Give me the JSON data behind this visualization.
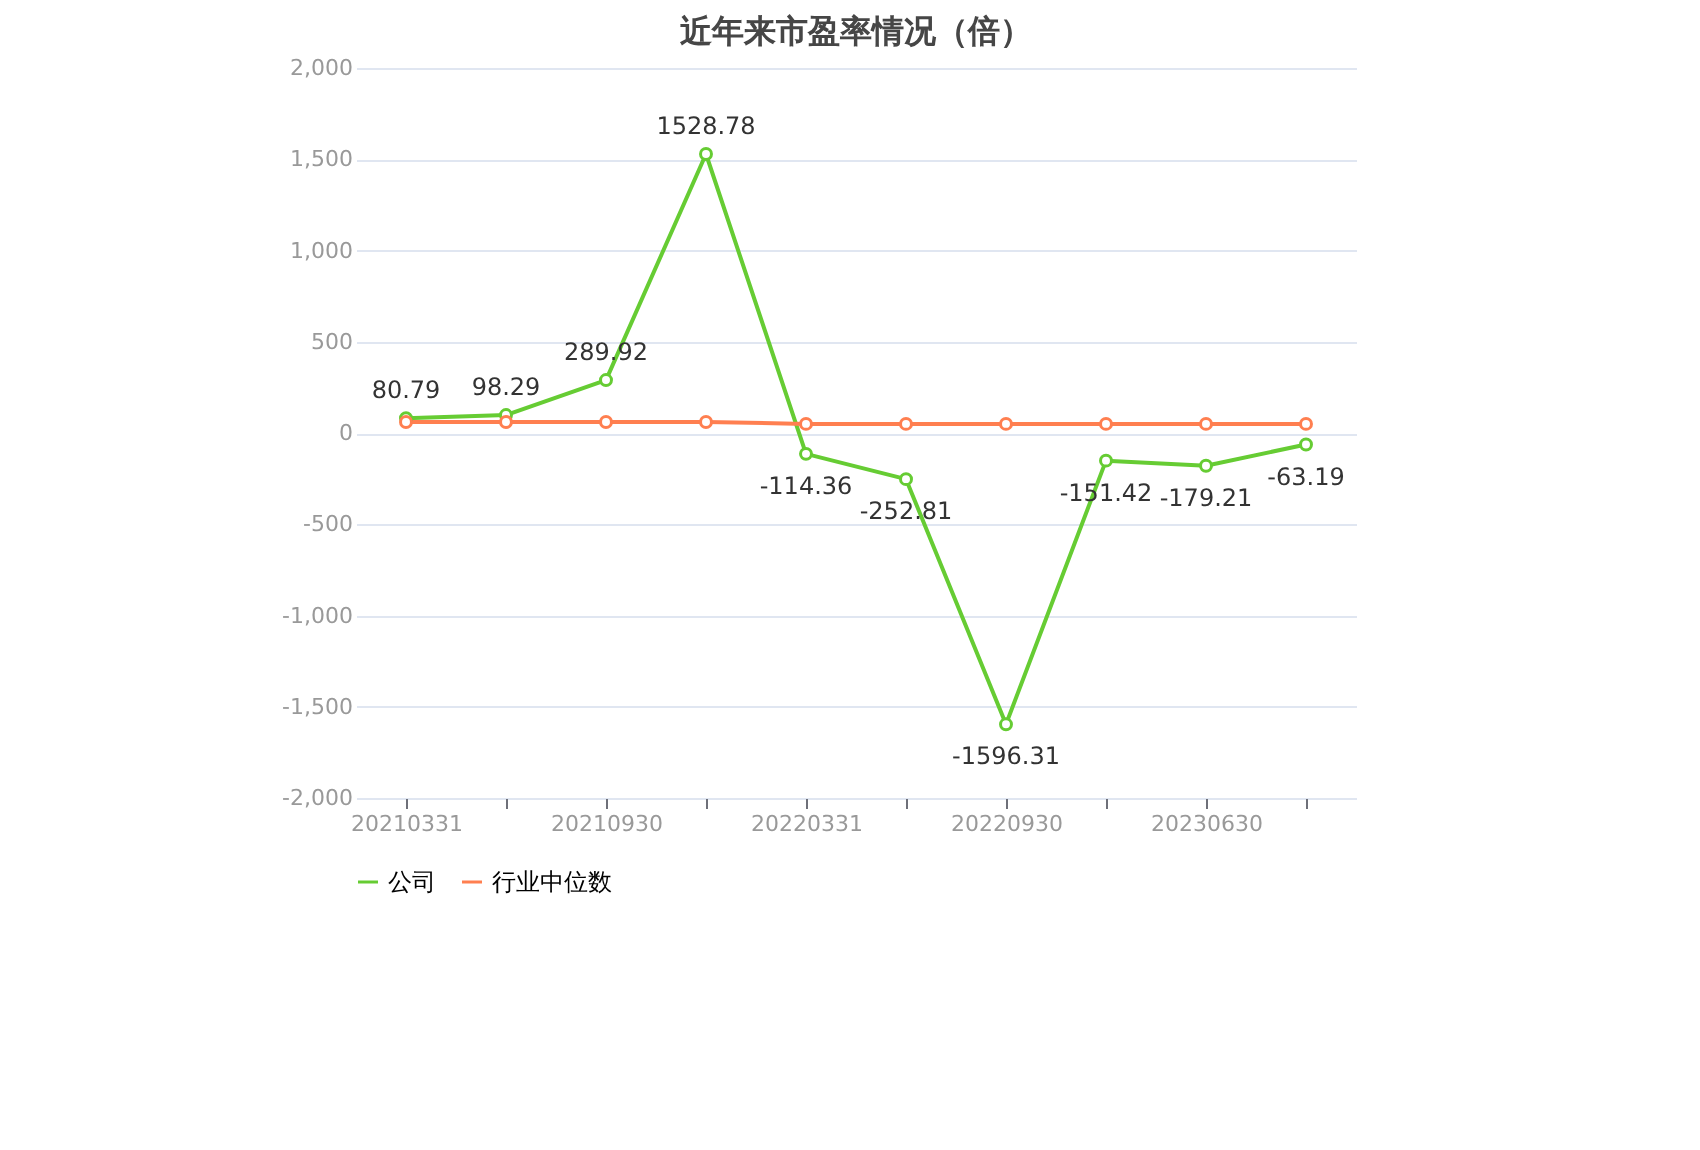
{
  "chart_data": {
    "type": "line",
    "title": "近年来市盈率情况（倍）",
    "categories": [
      "20210331",
      null,
      "20210930",
      null,
      "20220331",
      null,
      "20220930",
      null,
      "20230630",
      null
    ],
    "series": [
      {
        "name": "公司",
        "color": "#66cc33",
        "values": [
          80.79,
          98.29,
          289.92,
          1528.78,
          -114.36,
          -252.81,
          -1596.31,
          -151.42,
          -179.21,
          -63.19
        ],
        "value_labels": [
          "80.79",
          "98.29",
          "289.92",
          "1528.78",
          "-114.36",
          "-252.81",
          "-1596.31",
          "-151.42",
          "-179.21",
          "-63.19"
        ]
      },
      {
        "name": "行业中位数",
        "color": "#ff7f50",
        "values": [
          60,
          60,
          60,
          60,
          50,
          50,
          50,
          50,
          50,
          50
        ]
      }
    ],
    "ylim": [
      -2000,
      2000
    ],
    "yticks": [
      {
        "value": -2000,
        "label": "-2,000"
      },
      {
        "value": -1500,
        "label": "-1,500"
      },
      {
        "value": -1000,
        "label": "-1,000"
      },
      {
        "value": -500,
        "label": "-500"
      },
      0,
      500,
      {
        "value": 1000,
        "label": "1,000"
      },
      {
        "value": 1500,
        "label": "1,500"
      },
      {
        "value": 2000,
        "label": "2,000"
      }
    ],
    "grid": "y",
    "legend": "bottom",
    "marker": "circle",
    "line_style": "solid"
  }
}
